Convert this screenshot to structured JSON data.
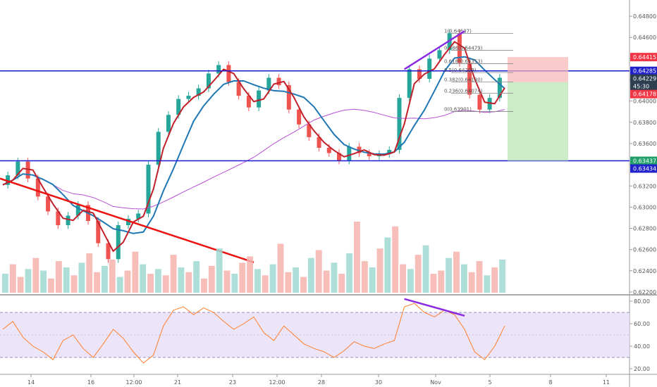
{
  "chart_data": [
    {
      "type": "candlestick",
      "panel": "price",
      "y_ticks": [
        "0.64800",
        "0.64600",
        "0.64400",
        "0.64200",
        "0.64000",
        "0.63800",
        "0.63600",
        "0.63400",
        "0.63200",
        "0.63000",
        "0.62800",
        "0.62600",
        "0.62400",
        "0.62200"
      ],
      "ylim": [
        0.6218,
        0.649
      ],
      "horizontal_levels": [
        0.64285,
        0.63437
      ],
      "price_labels": [
        {
          "text": "0.64415",
          "value": 0.64415,
          "color": "#f23645"
        },
        {
          "text": "0.64285",
          "value": 0.64285,
          "color": "#2222cc"
        },
        {
          "text": "0.64229",
          "value": 0.64229,
          "color": "#2c3e50"
        },
        {
          "text": "45:30",
          "value": 0.64202,
          "color": "#2c3e50"
        },
        {
          "text": "0.64178",
          "value": 0.64178,
          "color": "#f23645"
        },
        {
          "text": "0.63437",
          "value": 0.63437,
          "color": "#22a06b"
        },
        {
          "text": "0.63434",
          "value": 0.63434,
          "color": "#2222cc"
        }
      ],
      "fib_labels": [
        {
          "text": "1(0.64637)",
          "value": 0.64637
        },
        {
          "text": "0.786(0.64479)",
          "value": 0.64479
        },
        {
          "text": "0.618(0.64353)",
          "value": 0.64353
        },
        {
          "text": "0.5(0.64269)",
          "value": 0.64269
        },
        {
          "text": "0.382(0.64180)",
          "value": 0.6418
        },
        {
          "text": "0.236(0.64074)",
          "value": 0.64074
        },
        {
          "text": "0(0.63901)",
          "value": 0.63901
        }
      ],
      "trade_box": {
        "entry": 0.64178,
        "stop": 0.64415,
        "target": 0.63437
      },
      "price_path": [
        0.6321,
        0.633,
        0.6343,
        0.6327,
        0.631,
        0.6296,
        0.6283,
        0.6292,
        0.6302,
        0.6287,
        0.6266,
        0.6251,
        0.6283,
        0.6289,
        0.6294,
        0.634,
        0.6371,
        0.6387,
        0.6402,
        0.6405,
        0.6412,
        0.6426,
        0.6434,
        0.6418,
        0.6405,
        0.6394,
        0.641,
        0.6422,
        0.6415,
        0.6392,
        0.6378,
        0.6366,
        0.6356,
        0.6351,
        0.6344,
        0.6357,
        0.6351,
        0.6348,
        0.635,
        0.6354,
        0.6403,
        0.643,
        0.6421,
        0.644,
        0.6448,
        0.6464,
        0.6436,
        0.6406,
        0.6392,
        0.6403,
        0.6422
      ]
    },
    {
      "type": "bar",
      "panel": "volume",
      "values": [
        12,
        18,
        10,
        15,
        22,
        14,
        9,
        20,
        16,
        11,
        19,
        25,
        13,
        17,
        21,
        10,
        14,
        26,
        18,
        12,
        15,
        11,
        24,
        16,
        13,
        20,
        9,
        17,
        28,
        14,
        12,
        19,
        23,
        15,
        11,
        18,
        31,
        13,
        16,
        10,
        22,
        27,
        14,
        19,
        12,
        25,
        45,
        20,
        16,
        28,
        35,
        42,
        18,
        15,
        24,
        30,
        12,
        14,
        22,
        26,
        18,
        13,
        20,
        11,
        16,
        21
      ]
    },
    {
      "type": "line",
      "panel": "rsi",
      "y_ticks": [
        "80.00",
        "60.00",
        "40.00",
        "20.00"
      ],
      "ylim": [
        15,
        85
      ],
      "band": [
        30,
        70
      ],
      "midline": 50,
      "values": [
        55,
        62,
        48,
        40,
        35,
        28,
        45,
        50,
        38,
        30,
        42,
        55,
        47,
        35,
        25,
        32,
        58,
        72,
        75,
        68,
        74,
        70,
        62,
        55,
        60,
        66,
        52,
        45,
        58,
        50,
        42,
        38,
        35,
        30,
        36,
        44,
        40,
        38,
        42,
        45,
        75,
        78,
        70,
        66,
        72,
        68,
        55,
        35,
        28,
        40,
        58
      ]
    }
  ],
  "x_axis": {
    "labels": [
      "14",
      "16",
      "12:00",
      "21",
      "23",
      "12:00",
      "28",
      "30",
      "Nov",
      "5",
      "8",
      "11"
    ]
  }
}
